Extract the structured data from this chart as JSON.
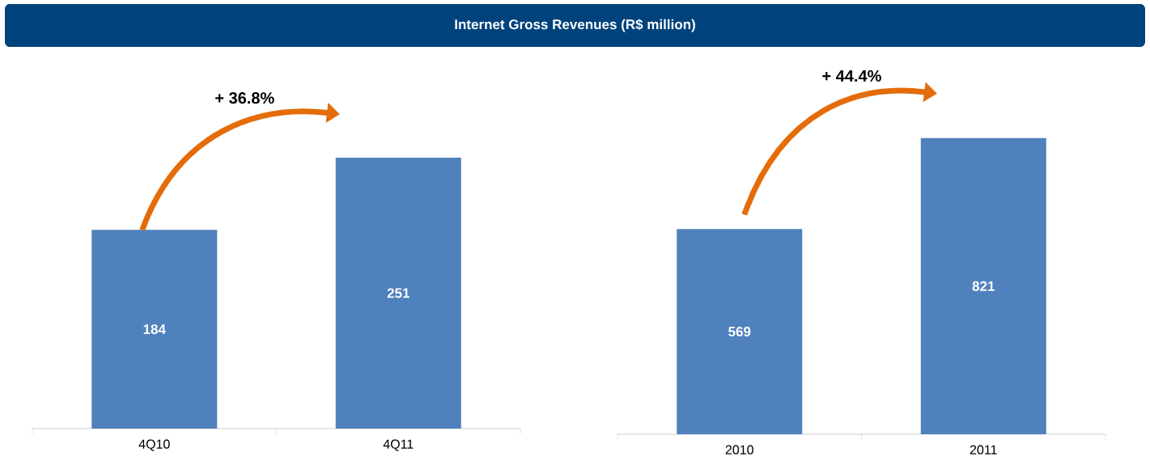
{
  "chart_data": [
    {
      "type": "bar",
      "title": "Internet Gross Revenues  (R$ million)",
      "categories": [
        "4Q10",
        "4Q11"
      ],
      "values": [
        184,
        251
      ],
      "color": "#4f81bd",
      "data_labels": true,
      "annotations": [
        "+ 36.8%"
      ]
    },
    {
      "type": "bar",
      "categories": [
        "2010",
        "2011"
      ],
      "values": [
        569,
        821
      ],
      "color": "#4f81bd",
      "data_labels": true,
      "annotations": [
        "+ 44.4%"
      ]
    }
  ]
}
